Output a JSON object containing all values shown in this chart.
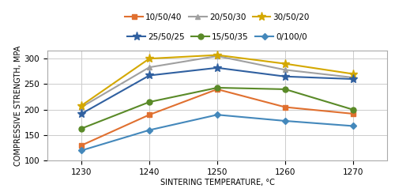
{
  "x": [
    1230,
    1240,
    1250,
    1260,
    1270
  ],
  "series": [
    {
      "label": "10/50/40",
      "color": "#E07030",
      "marker": "s",
      "markersize": 5,
      "values": [
        130,
        190,
        240,
        205,
        192
      ]
    },
    {
      "label": "20/50/30",
      "color": "#A0A0A0",
      "marker": "^",
      "markersize": 5,
      "values": [
        205,
        283,
        305,
        278,
        263
      ]
    },
    {
      "label": "30/50/20",
      "color": "#D4A800",
      "marker": "*",
      "markersize": 8,
      "values": [
        208,
        300,
        307,
        290,
        270
      ]
    },
    {
      "label": "25/50/25",
      "color": "#3060A0",
      "marker": "*",
      "markersize": 8,
      "values": [
        192,
        267,
        282,
        265,
        260
      ]
    },
    {
      "label": "15/50/35",
      "color": "#5A8A28",
      "marker": "o",
      "markersize": 5,
      "values": [
        163,
        215,
        243,
        240,
        200
      ]
    },
    {
      "label": "0/100/0",
      "color": "#4488BB",
      "marker": "D",
      "markersize": 4,
      "values": [
        120,
        160,
        190,
        178,
        168
      ]
    }
  ],
  "xlabel": "SINTERING TEMPERATURE, °C",
  "ylabel": "COMPRESSIVE STRENGTH, MPA",
  "ylim": [
    100,
    315
  ],
  "xlim": [
    1225,
    1275
  ],
  "yticks": [
    100,
    150,
    200,
    250,
    300
  ],
  "xticks": [
    1230,
    1240,
    1250,
    1260,
    1270
  ],
  "grid_color": "#CCCCCC",
  "background_color": "#FFFFFF",
  "axis_fontsize": 7.0,
  "tick_fontsize": 7.5,
  "legend_fontsize": 7.5,
  "linewidth": 1.5
}
